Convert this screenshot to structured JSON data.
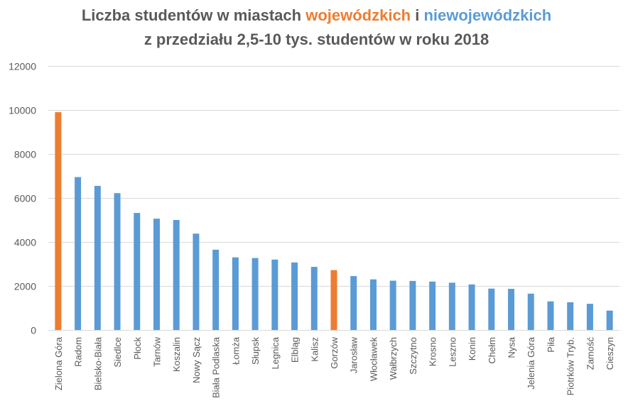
{
  "title": {
    "line1_prefix": "Liczba studentów w miastach ",
    "line1_highlight_a": "wojewódzkich",
    "line1_mid": " i ",
    "line1_highlight_b": "niewojewódzkich",
    "line2": "z przedziału 2,5-10 tys. studentów w roku 2018"
  },
  "colors": {
    "voivodeship": "#ED7D31",
    "non_voivodeship": "#5B9BD5",
    "grid": "#D9D9D9",
    "axis_text": "#595959",
    "title_text": "#595959"
  },
  "chart_data": {
    "type": "bar",
    "title": "Liczba studentów w miastach wojewódzkich i niewojewódzkich z przedziału 2,5-10 tys. studentów w roku 2018",
    "xlabel": "",
    "ylabel": "",
    "ylim": [
      0,
      12000
    ],
    "yticks": [
      0,
      2000,
      4000,
      6000,
      8000,
      10000,
      12000
    ],
    "grid": true,
    "legend": "none",
    "categories": [
      "Zielona Góra",
      "Radom",
      "Bielsko-Biała",
      "Siedlce",
      "Płock",
      "Tarnów",
      "Koszalin",
      "Nowy Sącz",
      "Biała Podlaska",
      "Łomża",
      "Słupsk",
      "Legnica",
      "Elbląg",
      "Kalisz",
      "Gorzów",
      "Jarosław",
      "Włocławek",
      "Wałbrzych",
      "Szczytno",
      "Krosno",
      "Leszno",
      "Konin",
      "Chełm",
      "Nysa",
      "Jelenia Góra",
      "Piła",
      "Piotrków Tryb.",
      "Zamość",
      "Cieszyn"
    ],
    "values": [
      9900,
      6950,
      6550,
      6220,
      5320,
      5060,
      5000,
      4380,
      3650,
      3300,
      3270,
      3200,
      3070,
      2870,
      2720,
      2450,
      2300,
      2240,
      2230,
      2200,
      2150,
      2070,
      1880,
      1870,
      1650,
      1300,
      1260,
      1190,
      880
    ],
    "voivodeship": [
      true,
      false,
      false,
      false,
      false,
      false,
      false,
      false,
      false,
      false,
      false,
      false,
      false,
      false,
      true,
      false,
      false,
      false,
      false,
      false,
      false,
      false,
      false,
      false,
      false,
      false,
      false,
      false,
      false
    ]
  }
}
